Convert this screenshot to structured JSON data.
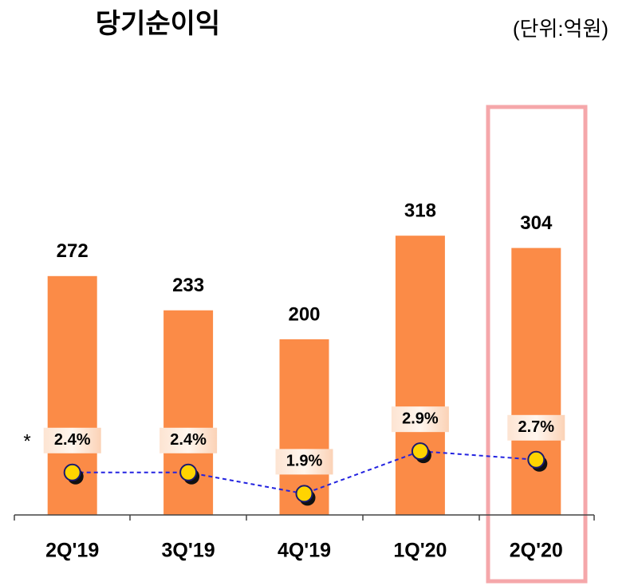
{
  "chart_data": {
    "type": "bar",
    "title": "당기순이익",
    "unit_label": "(단위:억원)",
    "footnote_marker": "*",
    "categories": [
      "2Q'19",
      "3Q'19",
      "4Q'19",
      "1Q'20",
      "2Q'20"
    ],
    "values": [
      272,
      233,
      200,
      318,
      304
    ],
    "color": "#fb8b47",
    "ylim": [
      0,
      450
    ],
    "line": {
      "type": "line",
      "axis": "y2",
      "color": "#2323e0",
      "marker_color": "#ffd400",
      "values": [
        2.4,
        2.4,
        1.9,
        2.9,
        2.7
      ],
      "value_labels": [
        "2.4%",
        "2.4%",
        "1.9%",
        "2.9%",
        "2.7%"
      ]
    },
    "y2lim": [
      1.4,
      10.7
    ]
  }
}
